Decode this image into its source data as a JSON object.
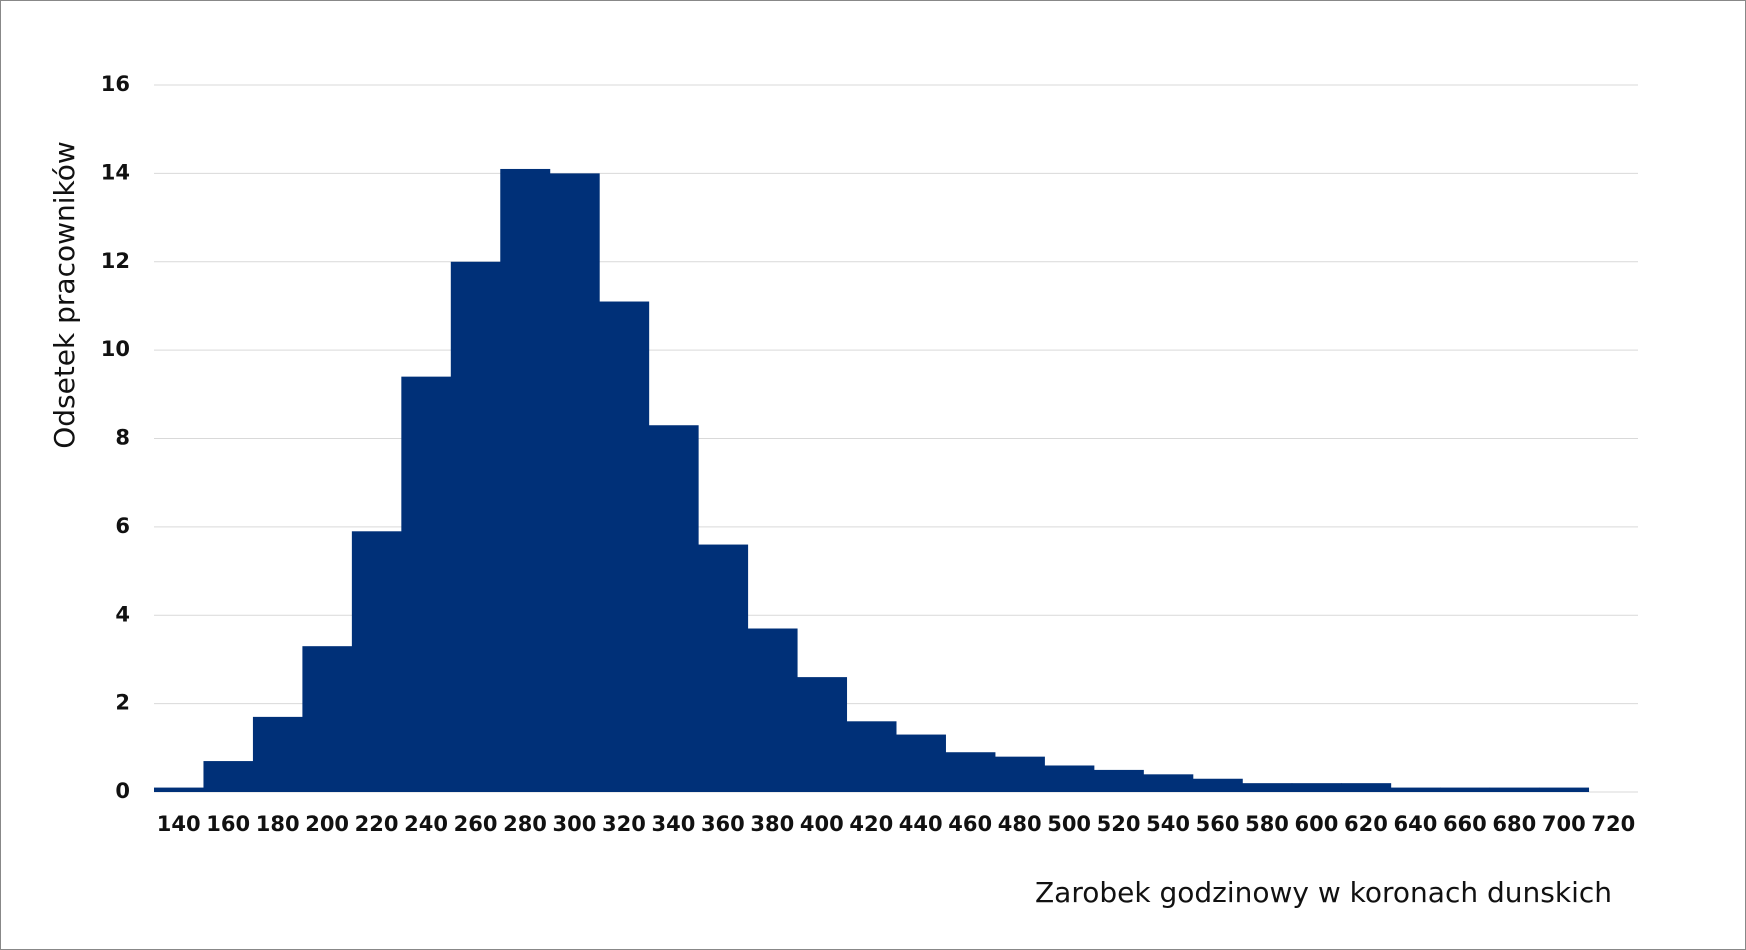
{
  "chart_data": {
    "type": "bar",
    "x_label": "Zarobek godzinowy w koronach dunskich",
    "y_label": "Odsetek pracowników",
    "categories": [
      "140",
      "160",
      "180",
      "200",
      "220",
      "240",
      "260",
      "280",
      "300",
      "320",
      "340",
      "360",
      "380",
      "400",
      "420",
      "440",
      "460",
      "480",
      "500",
      "520",
      "540",
      "560",
      "580",
      "600",
      "620",
      "640",
      "660",
      "680",
      "700",
      "720"
    ],
    "values": [
      0.1,
      0.7,
      1.7,
      3.3,
      5.9,
      9.4,
      12,
      14.1,
      14,
      11.1,
      8.3,
      5.6,
      3.7,
      2.6,
      1.6,
      1.3,
      0.9,
      0.8,
      0.6,
      0.5,
      0.4,
      0.3,
      0.2,
      0.2,
      0.2,
      0.1,
      0.1,
      0.1,
      0.1,
      0
    ],
    "color": "#003078",
    "ylim": [
      0,
      16
    ],
    "yticks": [
      0,
      2,
      4,
      6,
      8,
      10,
      12,
      14,
      16
    ],
    "grid": true
  }
}
